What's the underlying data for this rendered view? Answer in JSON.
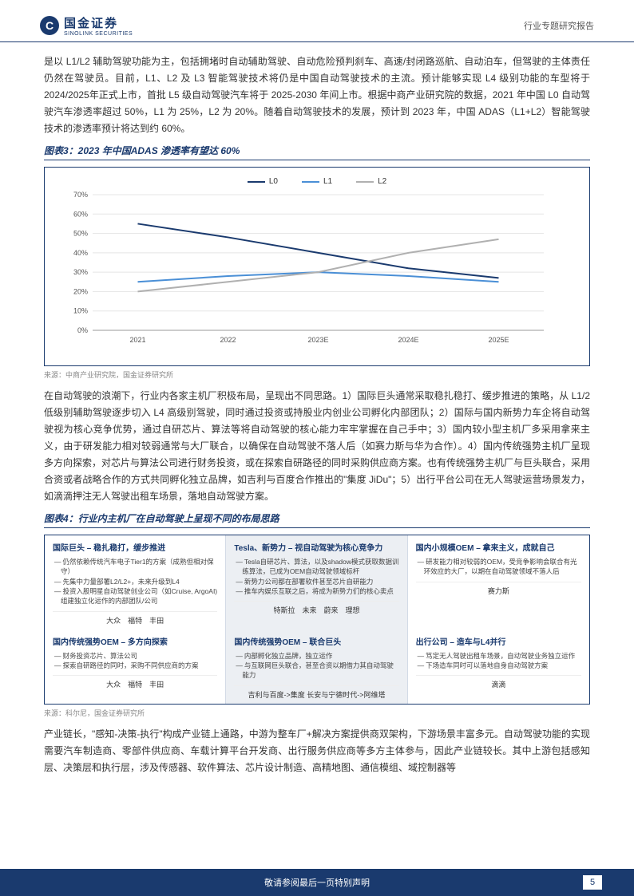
{
  "header": {
    "logo_cn": "国金证券",
    "logo_en": "SINOLINK SECURITIES",
    "right": "行业专题研究报告"
  },
  "para1": "是以 L1/L2 辅助驾驶功能为主，包括拥堵时自动辅助驾驶、自动危险预判刹车、高速/封闭路巡航、自动泊车，但驾驶的主体责任仍然在驾驶员。目前，L1、L2 及 L3 智能驾驶技术将仍是中国自动驾驶技术的主流。预计能够实现 L4 级别功能的车型将于 2024/2025年正式上市，首批 L5 级自动驾驶汽车将于 2025-2030 年间上市。根据中商产业研究院的数据，2021 年中国 L0 自动驾驶汽车渗透率超过 50%，L1 为 25%，L2 为 20%。随着自动驾驶技术的发展，预计到 2023 年，中国 ADAS（L1+L2）智能驾驶技术的渗透率预计将达到约 60%。",
  "fig3_title": "图表3：2023 年中国ADAS 渗透率有望达 60%",
  "chart": {
    "type": "line",
    "ylabel_ticks": [
      "0%",
      "10%",
      "20%",
      "30%",
      "40%",
      "50%",
      "60%",
      "70%"
    ],
    "xlabels": [
      "2021",
      "2022",
      "2023E",
      "2024E",
      "2025E"
    ],
    "series": [
      {
        "name": "L0",
        "color": "#1a3a6e",
        "values": [
          55,
          48,
          40,
          32,
          27
        ]
      },
      {
        "name": "L1",
        "color": "#4a8fd6",
        "values": [
          25,
          28,
          30,
          28,
          25
        ]
      },
      {
        "name": "L2",
        "color": "#b0b0b0",
        "values": [
          20,
          25,
          30,
          40,
          47
        ]
      }
    ],
    "ylim": [
      0,
      70
    ],
    "background": "#ffffff",
    "grid_color": "#e5e5e5"
  },
  "source3": "来源：中商产业研究院，国金证券研究所",
  "para2": "在自动驾驶的浪潮下，行业内各家主机厂积极布局，呈现出不同思路。1）国际巨头通常采取稳扎稳打、缓步推进的策略，从 L1/2 低级别辅助驾驶逐步切入 L4 高级别驾驶，同时通过投资或持股业内创业公司孵化内部团队；2）国际与国内新势力车企将自动驾驶视为核心竞争优势，通过自研芯片、算法等将自动驾驶的核心能力牢牢掌握在自己手中；3）国内较小型主机厂多采用拿来主义，由于研发能力相对较弱通常与大厂联合，以确保在自动驾驶不落人后（如赛力斯与华为合作）。4）国内传统强势主机厂呈现多方向探索，对芯片与算法公司进行财务投资，或在探索自研路径的同时采购供应商方案。也有传统强势主机厂与巨头联合，采用合资或者战略合作的方式共同孵化独立品牌，如吉利与百度合作推出的\"集度 JiDu\"；5）出行平台公司在无人驾驶运营场景发力，如滴滴押注无人驾驶出租车场景，落地自动驾驶方案。",
  "fig4_title": "图表4：行业内主机厂在自动驾驶上呈现不同的布局思路",
  "table4": {
    "r1": [
      {
        "title": "国际巨头 – 稳扎稳打，缓步推进",
        "items": [
          "仍然依赖传统汽车电子Tier1的方案（成熟但相对保守）",
          "先集中力量部署L2/L2+，未来升级到L4",
          "投资入股明星自动驾驶创业公司（如Cruise, ArgoAI)组建独立化运作的内部团队/公司"
        ],
        "foot": "大众　福特　丰田"
      },
      {
        "title": "Tesla、新势力 – 视自动驾驶为核心竞争力",
        "items": [
          "Tesla自研芯片、算法，以及shadow模式获取数据训练算法，已成为OEM自动驾驶领域标杆",
          "新势力公司都在部署软件甚至芯片自研能力",
          "推车内娱乐互联之后，将成为新势力们的核心卖点"
        ],
        "foot": "特斯拉　未来　蔚来　理想"
      },
      {
        "title": "国内小规模OEM – 拿来主义，成就自己",
        "items": [
          "研发能力相对较弱的OEM，受竞争影响会联合有光环效应的大厂，以期在自动驾驶领域不落人后"
        ],
        "foot": "赛力斯"
      }
    ],
    "r2": [
      {
        "title": "国内传统强势OEM – 多方向探索",
        "items": [
          "财务投资芯片、算法公司",
          "探索自研路径的同时，采购不同供应商的方案"
        ],
        "foot": "大众　福特　丰田"
      },
      {
        "title": "国内传统强势OEM – 联合巨头",
        "items": [
          "内部孵化独立品牌，独立运作",
          "与互联网巨头联合，甚至合资以期借力其自动驾驶能力"
        ],
        "foot": "吉利与百度->集度\n长安与宁德时代->阿维塔"
      },
      {
        "title": "出行公司 – 造车与L4并行",
        "items": [
          "笃定无人驾驶出租车场景，自动驾驶业务独立运作",
          "下场造车同时可以落地自身自动驾驶方案"
        ],
        "foot": "滴滴"
      }
    ]
  },
  "source4": "来源：科尔尼，国金证券研究所",
  "para3": "产业链长，\"感知-决策-执行\"构成产业链上通路，中游为整车厂+解决方案提供商双架构，下游场景丰富多元。自动驾驶功能的实现需要汽车制造商、零部件供应商、车载计算平台开发商、出行服务供应商等多方主体参与，因此产业链较长。其中上游包括感知层、决策层和执行层，涉及传感器、软件算法、芯片设计制造、高精地图、通信模组、域控制器等",
  "footer_text": "敬请参阅最后一页特别声明",
  "page_num": "5"
}
